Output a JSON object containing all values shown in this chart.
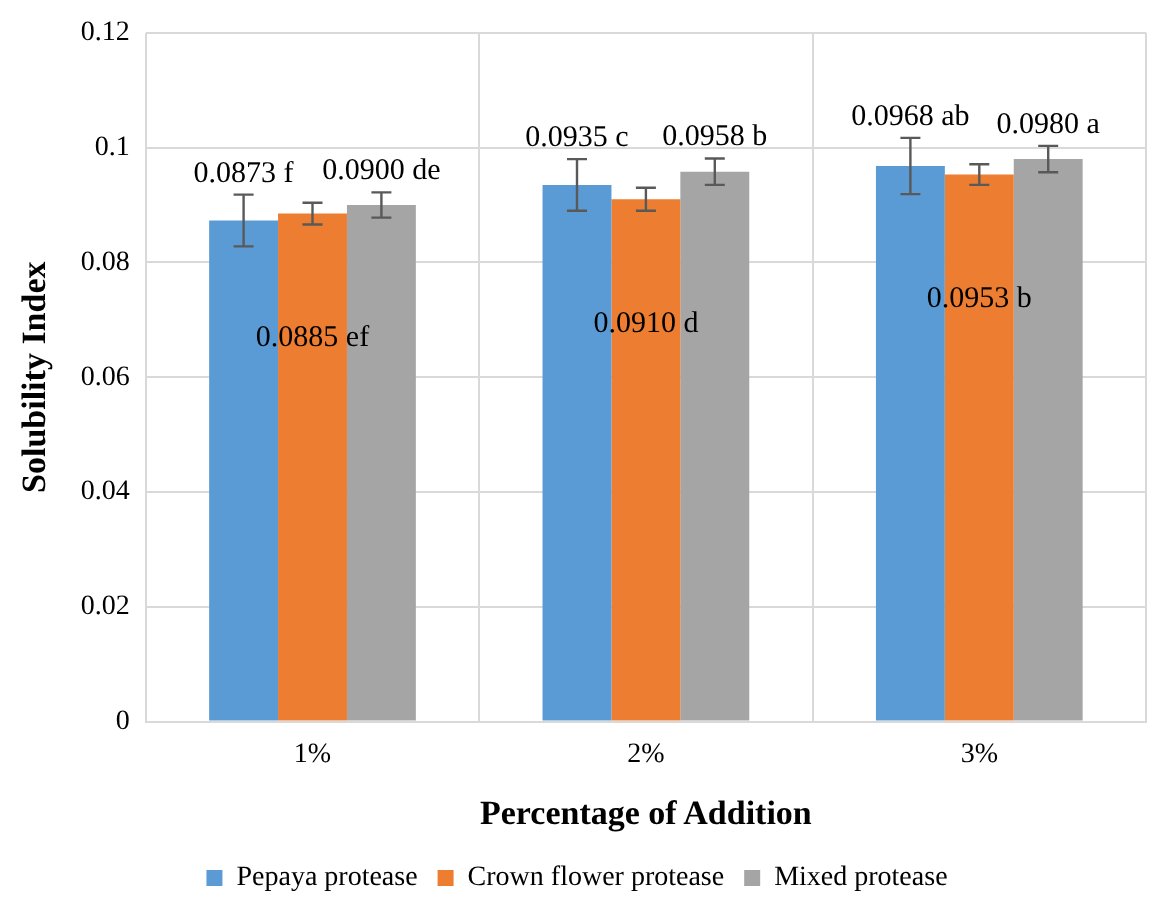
{
  "chart_data": {
    "type": "bar",
    "xlabel": "Percentage of Addition",
    "ylabel": "Solubility Index",
    "categories": [
      "1%",
      "2%",
      "3%"
    ],
    "series": [
      {
        "name": "Pepaya protease",
        "color": "#5b9bd5",
        "values": [
          0.0873,
          0.0935,
          0.0968
        ],
        "errors": [
          0.0045,
          0.0045,
          0.0049
        ],
        "value_labels": [
          "0.0873 f",
          "0.0935 c",
          "0.0968 ab"
        ]
      },
      {
        "name": "Crown flower protease",
        "color": "#ed7d31",
        "values": [
          0.0885,
          0.091,
          0.0953
        ],
        "errors": [
          0.0019,
          0.002,
          0.0018
        ],
        "value_labels": [
          "0.0885 ef",
          "0.0910 d",
          "0.0953 b"
        ]
      },
      {
        "name": "Mixed protease",
        "color": "#a5a5a5",
        "values": [
          0.09,
          0.0958,
          0.098
        ],
        "errors": [
          0.0022,
          0.0023,
          0.0023
        ],
        "value_labels": [
          "0.0900 de",
          "0.0958 b",
          "0.0980 a"
        ]
      }
    ],
    "ylim": [
      0,
      0.12
    ],
    "yticks": [
      0,
      0.02,
      0.04,
      0.06,
      0.08,
      0.1,
      0.12
    ],
    "grid": true,
    "legend": "bottom"
  }
}
